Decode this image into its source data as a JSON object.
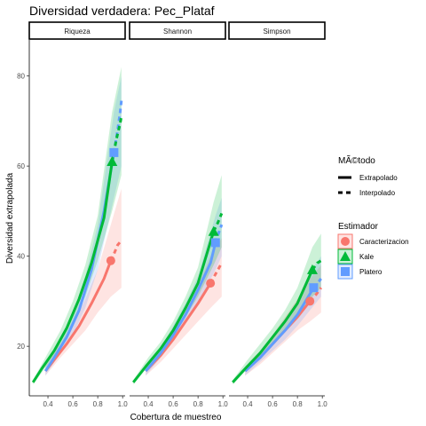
{
  "chart_data": {
    "type": "line",
    "title": "Diversidad verdadera: Pec_Plataf",
    "xlabel": "Cobertura de muestreo",
    "ylabel": "Diversidad extrapolada",
    "facets": [
      "Riqueza",
      "Shannon",
      "Simpson"
    ],
    "xlim": [
      0.25,
      1.02
    ],
    "ylim": [
      9,
      88
    ],
    "xticks": [
      0.4,
      0.6,
      0.8,
      1.0
    ],
    "xtick_labels": [
      "0.4",
      "0.6",
      "0.8",
      "1.0"
    ],
    "yticks": [
      20,
      40,
      60,
      80
    ],
    "ytick_labels": [
      "20",
      "40",
      "60",
      "80"
    ],
    "grid": false,
    "legend_position": "right",
    "legend_method": {
      "title": "MÃ©todo",
      "entries": [
        {
          "label": "Extrapolado",
          "linetype": "solid"
        },
        {
          "label": "Interpolado",
          "linetype": "dashed"
        }
      ]
    },
    "legend_estimator": {
      "title": "Estimador",
      "entries": [
        {
          "label": "Caracterizacion",
          "color": "#F8766D",
          "shape": "circle"
        },
        {
          "label": "Kale",
          "color": "#00BA38",
          "shape": "triangle"
        },
        {
          "label": "Platero",
          "color": "#619CFF",
          "shape": "square"
        }
      ]
    },
    "panels": [
      {
        "facet": "Riqueza",
        "series": [
          {
            "name": "Caracterizacion",
            "color": "#F8766D",
            "shape": "circle",
            "interp": [
              [
                0.38,
                14.5
              ],
              [
                0.45,
                17
              ],
              [
                0.55,
                20.5
              ],
              [
                0.65,
                24.5
              ],
              [
                0.75,
                29.5
              ],
              [
                0.85,
                35
              ],
              [
                0.905,
                39
              ]
            ],
            "extrap": [
              [
                0.905,
                39
              ],
              [
                0.93,
                40.5
              ],
              [
                0.96,
                42.5
              ],
              [
                0.99,
                43.5
              ]
            ],
            "point": [
              0.905,
              39
            ],
            "ribbon": [
              [
                0.38,
                13.5,
                15.5
              ],
              [
                0.5,
                17.5,
                20.5
              ],
              [
                0.6,
                20.5,
                25
              ],
              [
                0.7,
                23.5,
                30.5
              ],
              [
                0.8,
                27.5,
                37
              ],
              [
                0.905,
                31,
                47
              ],
              [
                0.99,
                33,
                55
              ]
            ]
          },
          {
            "name": "Platero",
            "color": "#619CFF",
            "shape": "square",
            "interp": [
              [
                0.38,
                14.5
              ],
              [
                0.45,
                17.5
              ],
              [
                0.55,
                22
              ],
              [
                0.65,
                28
              ],
              [
                0.75,
                37
              ],
              [
                0.85,
                50
              ],
              [
                0.93,
                63
              ]
            ],
            "extrap": [
              [
                0.93,
                63
              ],
              [
                0.96,
                68
              ],
              [
                0.98,
                72
              ],
              [
                0.99,
                74.5
              ]
            ],
            "point": [
              0.93,
              63
            ],
            "ribbon": [
              [
                0.38,
                13.5,
                15.5
              ],
              [
                0.5,
                18.5,
                21.5
              ],
              [
                0.6,
                22.5,
                27.5
              ],
              [
                0.7,
                28.5,
                35.5
              ],
              [
                0.8,
                37,
                47
              ],
              [
                0.93,
                53,
                72
              ],
              [
                0.99,
                60,
                80
              ]
            ]
          },
          {
            "name": "Kale",
            "color": "#00BA38",
            "shape": "triangle",
            "interp": [
              [
                0.28,
                12
              ],
              [
                0.35,
                15
              ],
              [
                0.45,
                19
              ],
              [
                0.55,
                24
              ],
              [
                0.65,
                30.5
              ],
              [
                0.75,
                38.5
              ],
              [
                0.85,
                48.5
              ],
              [
                0.915,
                61
              ]
            ],
            "extrap": [
              [
                0.915,
                61
              ],
              [
                0.95,
                66
              ],
              [
                0.98,
                69.5
              ],
              [
                0.99,
                71
              ]
            ],
            "point": [
              0.915,
              61
            ],
            "ribbon": [
              [
                0.28,
                11.5,
                12.5
              ],
              [
                0.4,
                16,
                18.5
              ],
              [
                0.5,
                20,
                23.5
              ],
              [
                0.6,
                25,
                30
              ],
              [
                0.7,
                31,
                38
              ],
              [
                0.8,
                39,
                49
              ],
              [
                0.915,
                50,
                72
              ],
              [
                0.99,
                58,
                82
              ]
            ]
          }
        ]
      },
      {
        "facet": "Shannon",
        "series": [
          {
            "name": "Caracterizacion",
            "color": "#F8766D",
            "shape": "circle",
            "interp": [
              [
                0.38,
                14.5
              ],
              [
                0.5,
                18
              ],
              [
                0.6,
                21.5
              ],
              [
                0.7,
                25.5
              ],
              [
                0.8,
                29.5
              ],
              [
                0.9,
                34
              ]
            ],
            "extrap": [
              [
                0.9,
                34
              ],
              [
                0.94,
                36
              ],
              [
                0.99,
                38.5
              ]
            ],
            "point": [
              0.9,
              34
            ],
            "ribbon": [
              [
                0.38,
                13.5,
                15.5
              ],
              [
                0.5,
                16.5,
                19.5
              ],
              [
                0.6,
                19.5,
                23.5
              ],
              [
                0.7,
                22.5,
                28.5
              ],
              [
                0.8,
                25.5,
                33.5
              ],
              [
                0.9,
                28.5,
                40
              ],
              [
                0.99,
                31,
                44
              ]
            ]
          },
          {
            "name": "Platero",
            "color": "#619CFF",
            "shape": "square",
            "interp": [
              [
                0.38,
                14.5
              ],
              [
                0.5,
                18.5
              ],
              [
                0.6,
                22.5
              ],
              [
                0.7,
                27
              ],
              [
                0.8,
                32.5
              ],
              [
                0.9,
                38.5
              ],
              [
                0.94,
                43
              ]
            ],
            "extrap": [
              [
                0.94,
                43
              ],
              [
                0.97,
                45.5
              ],
              [
                0.99,
                47
              ]
            ],
            "point": [
              0.94,
              43
            ],
            "ribbon": [
              [
                0.38,
                13.5,
                15.5
              ],
              [
                0.5,
                17.5,
                19.5
              ],
              [
                0.6,
                21,
                24.5
              ],
              [
                0.7,
                25,
                29.5
              ],
              [
                0.8,
                29.5,
                35.5
              ],
              [
                0.94,
                37,
                49
              ],
              [
                0.99,
                40,
                53
              ]
            ]
          },
          {
            "name": "Kale",
            "color": "#00BA38",
            "shape": "triangle",
            "interp": [
              [
                0.28,
                12
              ],
              [
                0.38,
                15.5
              ],
              [
                0.5,
                19.5
              ],
              [
                0.6,
                23.5
              ],
              [
                0.7,
                28.5
              ],
              [
                0.8,
                34
              ],
              [
                0.925,
                45.5
              ]
            ],
            "extrap": [
              [
                0.925,
                45.5
              ],
              [
                0.96,
                47.5
              ],
              [
                0.99,
                49.5
              ]
            ],
            "point": [
              0.925,
              45.5
            ],
            "ribbon": [
              [
                0.28,
                11.5,
                12.5
              ],
              [
                0.4,
                15.5,
                17.5
              ],
              [
                0.5,
                18.5,
                21
              ],
              [
                0.6,
                22,
                25.5
              ],
              [
                0.7,
                26.5,
                31
              ],
              [
                0.8,
                31,
                37.5
              ],
              [
                0.925,
                38,
                52
              ],
              [
                0.99,
                42,
                58
              ]
            ]
          }
        ]
      },
      {
        "facet": "Simpson",
        "series": [
          {
            "name": "Caracterizacion",
            "color": "#F8766D",
            "shape": "circle",
            "interp": [
              [
                0.38,
                14.5
              ],
              [
                0.5,
                17.5
              ],
              [
                0.6,
                20.5
              ],
              [
                0.7,
                23.5
              ],
              [
                0.8,
                26.5
              ],
              [
                0.9,
                30
              ]
            ],
            "extrap": [
              [
                0.9,
                30
              ],
              [
                0.95,
                31.5
              ],
              [
                0.99,
                33
              ]
            ],
            "point": [
              0.9,
              30
            ],
            "ribbon": [
              [
                0.38,
                13.5,
                15.5
              ],
              [
                0.5,
                16,
                19
              ],
              [
                0.6,
                18.5,
                22.5
              ],
              [
                0.7,
                21,
                26.5
              ],
              [
                0.8,
                23.5,
                30.5
              ],
              [
                0.9,
                25.5,
                35
              ],
              [
                0.99,
                27.5,
                38
              ]
            ]
          },
          {
            "name": "Platero",
            "color": "#619CFF",
            "shape": "square",
            "interp": [
              [
                0.38,
                14.5
              ],
              [
                0.5,
                17.5
              ],
              [
                0.6,
                20.5
              ],
              [
                0.7,
                23.5
              ],
              [
                0.8,
                27
              ],
              [
                0.93,
                33
              ]
            ],
            "extrap": [
              [
                0.93,
                33
              ],
              [
                0.96,
                34
              ],
              [
                0.99,
                35
              ]
            ],
            "point": [
              0.93,
              33
            ],
            "ribbon": [
              [
                0.38,
                13.5,
                15.5
              ],
              [
                0.5,
                16.5,
                18.5
              ],
              [
                0.6,
                19,
                22
              ],
              [
                0.7,
                21.5,
                25.5
              ],
              [
                0.8,
                24.5,
                29.5
              ],
              [
                0.93,
                29,
                37.5
              ],
              [
                0.99,
                31,
                40
              ]
            ]
          },
          {
            "name": "Kale",
            "color": "#00BA38",
            "shape": "triangle",
            "interp": [
              [
                0.28,
                12
              ],
              [
                0.38,
                15
              ],
              [
                0.5,
                18.5
              ],
              [
                0.6,
                22
              ],
              [
                0.7,
                25.5
              ],
              [
                0.8,
                29.5
              ],
              [
                0.92,
                37
              ]
            ],
            "extrap": [
              [
                0.92,
                37
              ],
              [
                0.96,
                38.5
              ],
              [
                0.99,
                39
              ]
            ],
            "point": [
              0.92,
              37
            ],
            "ribbon": [
              [
                0.28,
                11.5,
                12.5
              ],
              [
                0.4,
                15,
                17
              ],
              [
                0.5,
                17.5,
                20.5
              ],
              [
                0.6,
                20.5,
                24
              ],
              [
                0.7,
                23.5,
                28
              ],
              [
                0.8,
                26.5,
                33
              ],
              [
                0.92,
                31,
                42
              ],
              [
                0.99,
                33,
                45
              ]
            ]
          }
        ]
      }
    ]
  }
}
